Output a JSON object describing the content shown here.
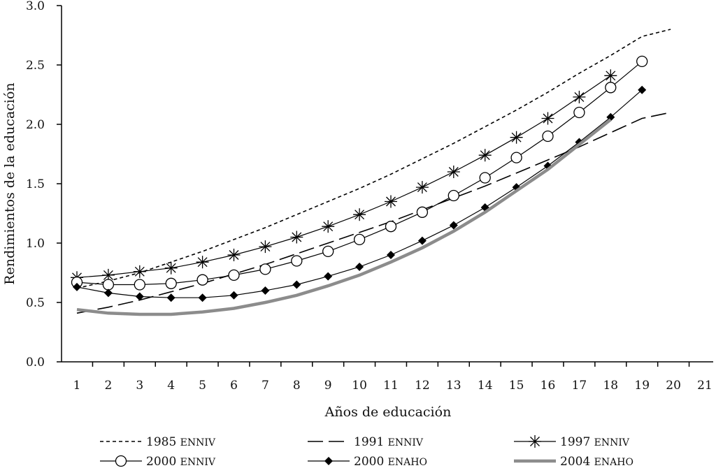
{
  "chart_data": {
    "type": "line",
    "title": "",
    "xlabel": "Años de educación",
    "ylabel": "Rendimientos de la educación",
    "x_categories": [
      "1",
      "2",
      "3",
      "4",
      "5",
      "6",
      "7",
      "8",
      "9",
      "10",
      "11",
      "12",
      "13",
      "14",
      "15",
      "16",
      "17",
      "18",
      "19",
      "20",
      "21"
    ],
    "ylim": [
      0,
      3.0
    ],
    "y_ticks": [
      "0.0",
      "0.5",
      "1.0",
      "1.5",
      "2.0",
      "2.5",
      "3.0"
    ],
    "grid": false,
    "legend_position": "bottom",
    "series": [
      {
        "name": "1985 ENNIV",
        "style": "short-dash",
        "color": "#000000",
        "x": [
          1,
          2,
          3,
          4,
          5,
          6,
          7,
          8,
          9,
          10,
          11,
          12,
          13,
          14,
          15,
          16,
          17,
          18,
          19,
          20
        ],
        "values": [
          0.62,
          0.68,
          0.75,
          0.84,
          0.93,
          1.03,
          1.13,
          1.24,
          1.35,
          1.46,
          1.58,
          1.71,
          1.84,
          1.98,
          2.12,
          2.27,
          2.43,
          2.58,
          2.74,
          2.8
        ]
      },
      {
        "name": "1991 ENNIV",
        "style": "long-dash",
        "color": "#000000",
        "x": [
          1,
          2,
          3,
          4,
          5,
          6,
          7,
          8,
          9,
          10,
          11,
          12,
          13,
          14,
          15,
          16,
          17,
          18,
          19,
          20
        ],
        "values": [
          0.41,
          0.46,
          0.52,
          0.59,
          0.66,
          0.74,
          0.82,
          0.91,
          1.0,
          1.09,
          1.18,
          1.28,
          1.38,
          1.48,
          1.59,
          1.7,
          1.81,
          1.93,
          2.05,
          2.1
        ]
      },
      {
        "name": "1997 ENNIV",
        "style": "asterisk",
        "color": "#000000",
        "x": [
          1,
          2,
          3,
          4,
          5,
          6,
          7,
          8,
          9,
          10,
          11,
          12,
          13,
          14,
          15,
          16,
          17,
          18
        ],
        "values": [
          0.71,
          0.73,
          0.76,
          0.79,
          0.84,
          0.9,
          0.97,
          1.05,
          1.14,
          1.24,
          1.35,
          1.47,
          1.6,
          1.74,
          1.89,
          2.05,
          2.23,
          2.41
        ]
      },
      {
        "name": "2000 ENNIV",
        "style": "open-circle",
        "color": "#000000",
        "x": [
          1,
          2,
          3,
          4,
          5,
          6,
          7,
          8,
          9,
          10,
          11,
          12,
          13,
          14,
          15,
          16,
          17,
          18,
          19
        ],
        "values": [
          0.67,
          0.65,
          0.65,
          0.66,
          0.69,
          0.73,
          0.78,
          0.85,
          0.93,
          1.03,
          1.14,
          1.26,
          1.4,
          1.55,
          1.72,
          1.9,
          2.1,
          2.31,
          2.53
        ]
      },
      {
        "name": "2000 ENAHO",
        "style": "filled-diamond",
        "color": "#000000",
        "x": [
          1,
          2,
          3,
          4,
          5,
          6,
          7,
          8,
          9,
          10,
          11,
          12,
          13,
          14,
          15,
          16,
          17,
          18,
          19
        ],
        "values": [
          0.63,
          0.58,
          0.55,
          0.54,
          0.54,
          0.56,
          0.6,
          0.65,
          0.72,
          0.8,
          0.9,
          1.02,
          1.15,
          1.3,
          1.47,
          1.65,
          1.85,
          2.06,
          2.29
        ]
      },
      {
        "name": "2004 ENAHO",
        "style": "thick-gray",
        "color": "#8c8c8c",
        "x": [
          1,
          2,
          3,
          4,
          5,
          6,
          7,
          8,
          9,
          10,
          11,
          12,
          13,
          14,
          15,
          16,
          17,
          18
        ],
        "values": [
          0.44,
          0.41,
          0.4,
          0.4,
          0.42,
          0.45,
          0.5,
          0.56,
          0.64,
          0.73,
          0.84,
          0.96,
          1.1,
          1.26,
          1.44,
          1.62,
          1.83,
          2.04
        ]
      }
    ]
  }
}
